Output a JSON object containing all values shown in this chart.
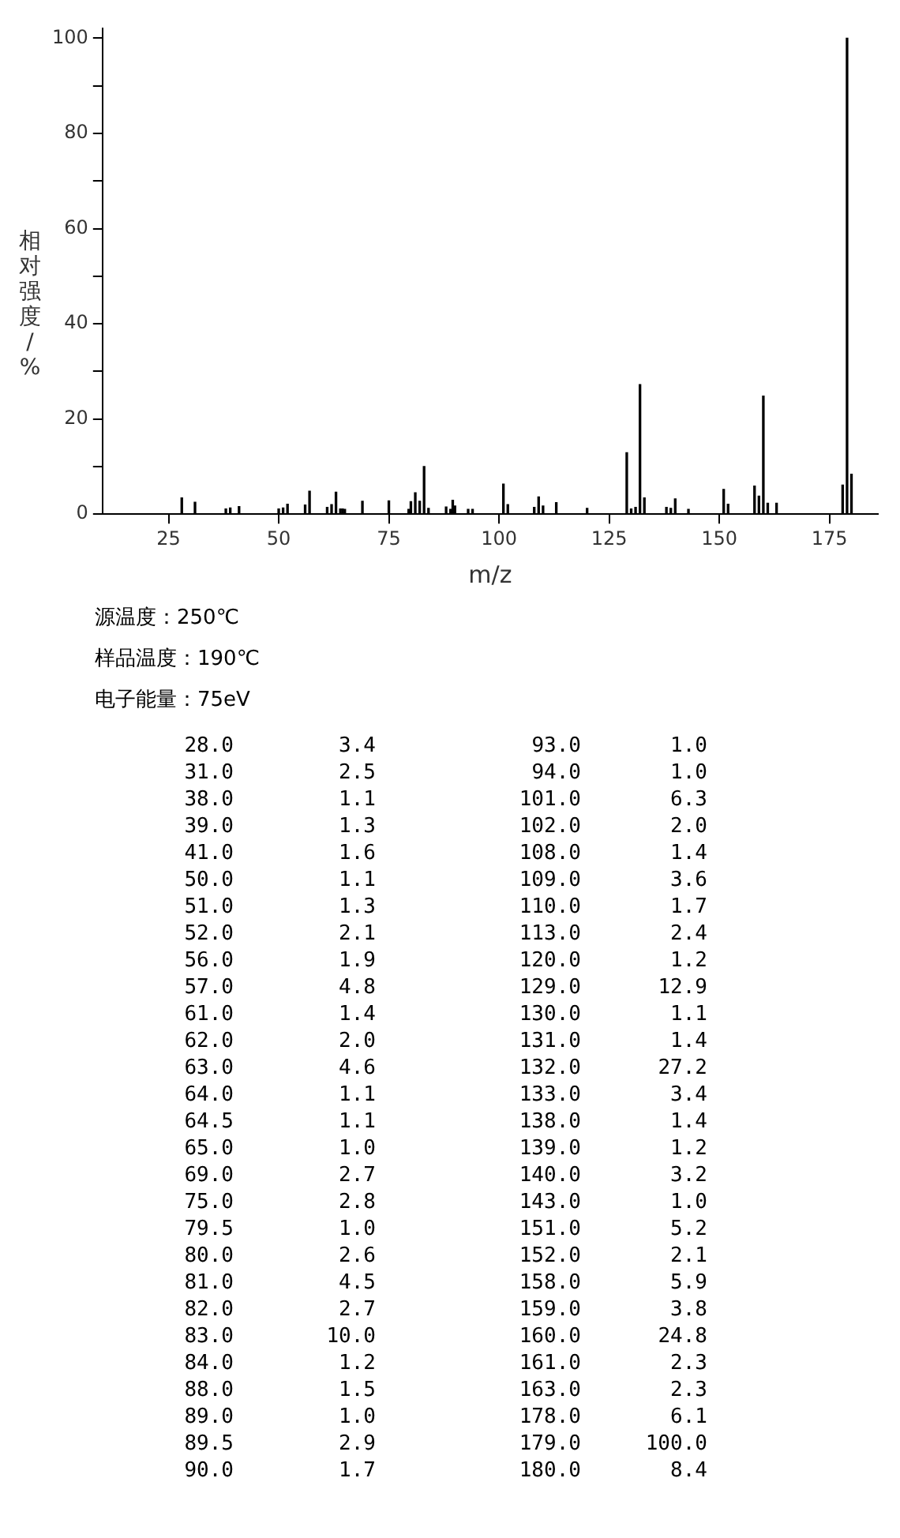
{
  "chart_data": [
    {
      "type": "bar",
      "xlabel": "m/z",
      "ylabel": "相对强度/%",
      "color": "#000000",
      "x": [
        28,
        31,
        38,
        39,
        41,
        50,
        51,
        52,
        56,
        57,
        61,
        62,
        63,
        64,
        64.5,
        65,
        69,
        75,
        79.5,
        80,
        81,
        82,
        83,
        84,
        88,
        89,
        89.5,
        90,
        93,
        94,
        101,
        102,
        108,
        109,
        110,
        113,
        120,
        129,
        130,
        131,
        132,
        133,
        138,
        139,
        140,
        143,
        151,
        152,
        158,
        159,
        160,
        161,
        163,
        178,
        179,
        180
      ],
      "values": [
        3.4,
        2.5,
        1.1,
        1.3,
        1.6,
        1.1,
        1.3,
        2.1,
        1.9,
        4.8,
        1.4,
        2.0,
        4.6,
        1.1,
        1.1,
        1.0,
        2.7,
        2.8,
        1.0,
        2.6,
        4.5,
        2.7,
        10.0,
        1.2,
        1.5,
        1.0,
        2.9,
        1.7,
        1.0,
        1.0,
        6.3,
        2.0,
        1.4,
        3.6,
        1.7,
        2.4,
        1.2,
        12.9,
        1.1,
        1.4,
        27.2,
        3.4,
        1.4,
        1.2,
        3.2,
        1.0,
        5.2,
        2.1,
        5.9,
        3.8,
        24.8,
        2.3,
        2.3,
        6.1,
        100.0,
        8.4
      ],
      "xlim": [
        10,
        186
      ],
      "xticks": [
        25,
        50,
        75,
        100,
        125,
        150,
        175
      ],
      "ylim": [
        0,
        102
      ],
      "yticks": [
        0,
        {
          "value": 10,
          "label": null
        },
        20,
        {
          "value": 30,
          "label": null
        },
        40,
        {
          "value": 50,
          "label": null
        },
        60,
        {
          "value": 70,
          "label": null
        },
        80,
        {
          "value": 90,
          "label": null
        },
        100
      ],
      "annotations": [
        "源温度：250℃",
        "样品温度：190℃",
        "电子能量：75eV"
      ]
    },
    {
      "type": "other",
      "annotations": [
        "28.0",
        "3.4",
        "93.0",
        "1.0",
        "31.0",
        "2.5",
        "94.0",
        "1.0",
        "38.0",
        "1.1",
        "101.0",
        "6.3",
        "39.0",
        "1.3",
        "102.0",
        "2.0",
        "41.0",
        "1.6",
        "108.0",
        "1.4",
        "50.0",
        "1.1",
        "109.0",
        "3.6",
        "51.0",
        "1.3",
        "110.0",
        "1.7",
        "52.0",
        "2.1",
        "113.0",
        "2.4",
        "56.0",
        "1.9",
        "120.0",
        "1.2",
        "57.0",
        "4.8",
        "129.0",
        "12.9",
        "61.0",
        "1.4",
        "130.0",
        "1.1",
        "62.0",
        "2.0",
        "131.0",
        "1.4",
        "63.0",
        "4.6",
        "132.0",
        "27.2",
        "64.0",
        "1.1",
        "133.0",
        "3.4",
        "64.5",
        "1.1",
        "138.0",
        "1.4",
        "65.0",
        "1.0",
        "139.0",
        "1.2",
        "69.0",
        "2.7",
        "140.0",
        "3.2",
        "75.0",
        "2.8",
        "143.0",
        "1.0",
        "79.5",
        "1.0",
        "151.0",
        "5.2",
        "80.0",
        "2.6",
        "152.0",
        "2.1",
        "81.0",
        "4.5",
        "158.0",
        "5.9",
        "82.0",
        "2.7",
        "159.0",
        "3.8",
        "83.0",
        "10.0",
        "160.0",
        "24.8",
        "84.0",
        "1.2",
        "161.0",
        "2.3",
        "88.0",
        "1.5",
        "163.0",
        "2.3",
        "89.0",
        "1.0",
        "178.0",
        "6.1",
        "89.5",
        "2.9",
        "179.0",
        "100.0",
        "90.0",
        "1.7",
        "180.0",
        "8.4"
      ]
    }
  ]
}
